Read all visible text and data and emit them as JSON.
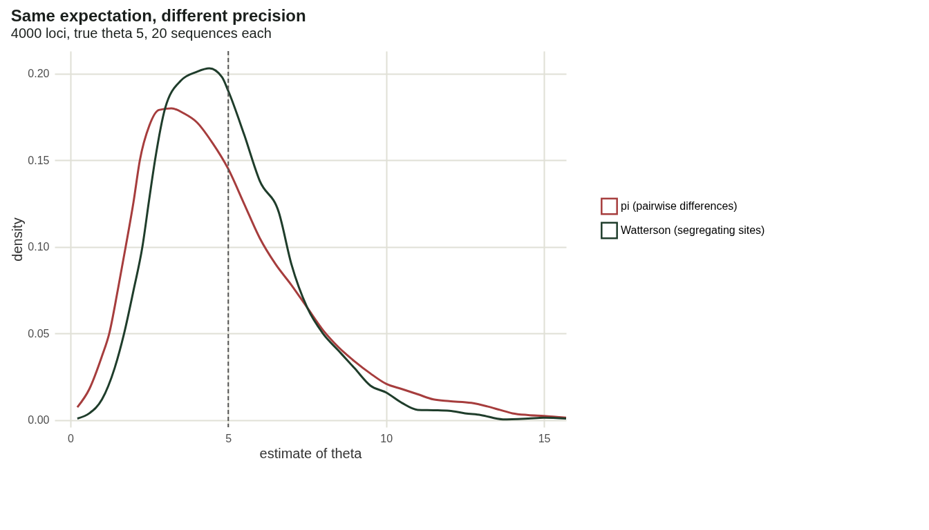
{
  "chart_data": {
    "type": "line",
    "title": "Same expectation, different precision",
    "subtitle": "4000 loci, true theta 5, 20 sequences each",
    "xlabel": "estimate of theta",
    "ylabel": "density",
    "xlim": [
      -0.5,
      15.7
    ],
    "ylim": [
      -0.004,
      0.213
    ],
    "xticks": [
      0,
      5,
      10,
      15
    ],
    "yticks": [
      {
        "value": 0,
        "label": "0.00"
      },
      {
        "value": 0.05,
        "label": "0.05"
      },
      {
        "value": 0.1,
        "label": "0.10"
      },
      {
        "value": 0.15,
        "label": "0.15"
      },
      {
        "value": 0.2,
        "label": "0.20"
      }
    ],
    "grid": true,
    "legend": "right",
    "marker": "none",
    "line_style": "solid",
    "ref_lines": [
      {
        "axis": "x",
        "value": 5,
        "color": "#555555",
        "line_style": "dashed"
      }
    ],
    "series": [
      {
        "name": "pi (pairwise differences)",
        "color": "#a63d3d",
        "x": [
          0.22,
          0.6,
          1.0,
          1.23,
          1.5,
          1.75,
          2.0,
          2.2,
          2.5,
          2.8,
          3.2,
          3.6,
          4.0,
          4.5,
          5.0,
          5.5,
          6.0,
          6.5,
          7.0,
          7.5,
          8.0,
          8.5,
          9.0,
          9.5,
          10.0,
          10.5,
          11.0,
          11.5,
          12.0,
          12.7,
          13.2,
          13.6,
          14.0,
          14.5,
          15.0,
          15.7
        ],
        "values": [
          0.0075,
          0.018,
          0.037,
          0.05,
          0.075,
          0.1,
          0.126,
          0.15,
          0.17,
          0.179,
          0.18,
          0.177,
          0.172,
          0.16,
          0.145,
          0.125,
          0.105,
          0.09,
          0.078,
          0.065,
          0.052,
          0.042,
          0.034,
          0.027,
          0.021,
          0.018,
          0.015,
          0.012,
          0.011,
          0.01,
          0.008,
          0.006,
          0.004,
          0.003,
          0.0025,
          0.0015
        ]
      },
      {
        "name": "Watterson (segregating sites)",
        "color": "#1f3d2b",
        "x": [
          0.22,
          0.6,
          1.0,
          1.4,
          1.7,
          2.0,
          2.28,
          2.5,
          2.68,
          3.0,
          3.5,
          4.0,
          4.4,
          4.8,
          5.0,
          5.5,
          6.0,
          6.6,
          7.0,
          7.5,
          8.0,
          8.5,
          9.0,
          9.5,
          10.0,
          10.5,
          11.0,
          11.5,
          12.0,
          12.5,
          13.0,
          13.7,
          14.5,
          15.0,
          15.7
        ],
        "values": [
          0.001,
          0.004,
          0.012,
          0.03,
          0.05,
          0.075,
          0.1,
          0.128,
          0.15,
          0.18,
          0.196,
          0.201,
          0.203,
          0.198,
          0.19,
          0.165,
          0.138,
          0.12,
          0.09,
          0.065,
          0.05,
          0.04,
          0.03,
          0.02,
          0.016,
          0.01,
          0.006,
          0.0058,
          0.0055,
          0.004,
          0.003,
          0.0005,
          0.001,
          0.0015,
          0.001
        ]
      }
    ]
  }
}
